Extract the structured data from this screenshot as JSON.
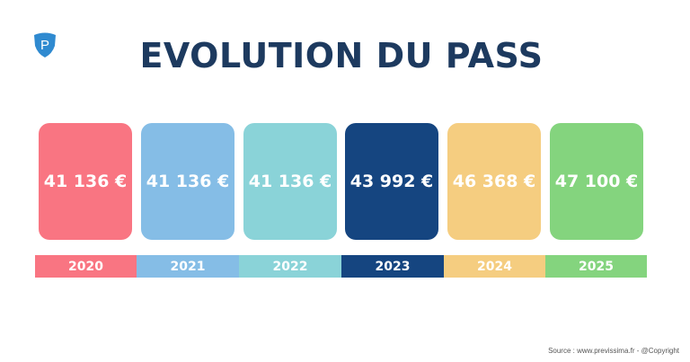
{
  "title": "EVOLUTION DU PASS",
  "logo": {
    "letter": "P",
    "color": "#2f8ad0"
  },
  "items": [
    {
      "year": "2020",
      "value": "41 136 €",
      "color": "#f97582"
    },
    {
      "year": "2021",
      "value": "41 136 €",
      "color": "#85bde6"
    },
    {
      "year": "2022",
      "value": "41 136 €",
      "color": "#8ad3d8"
    },
    {
      "year": "2023",
      "value": "43 992 €",
      "color": "#154580"
    },
    {
      "year": "2024",
      "value": "46 368 €",
      "color": "#f5cd80"
    },
    {
      "year": "2025",
      "value": "47 100 €",
      "color": "#84d47e"
    }
  ],
  "source": "Source : www.previssima.fr - @Copyright"
}
